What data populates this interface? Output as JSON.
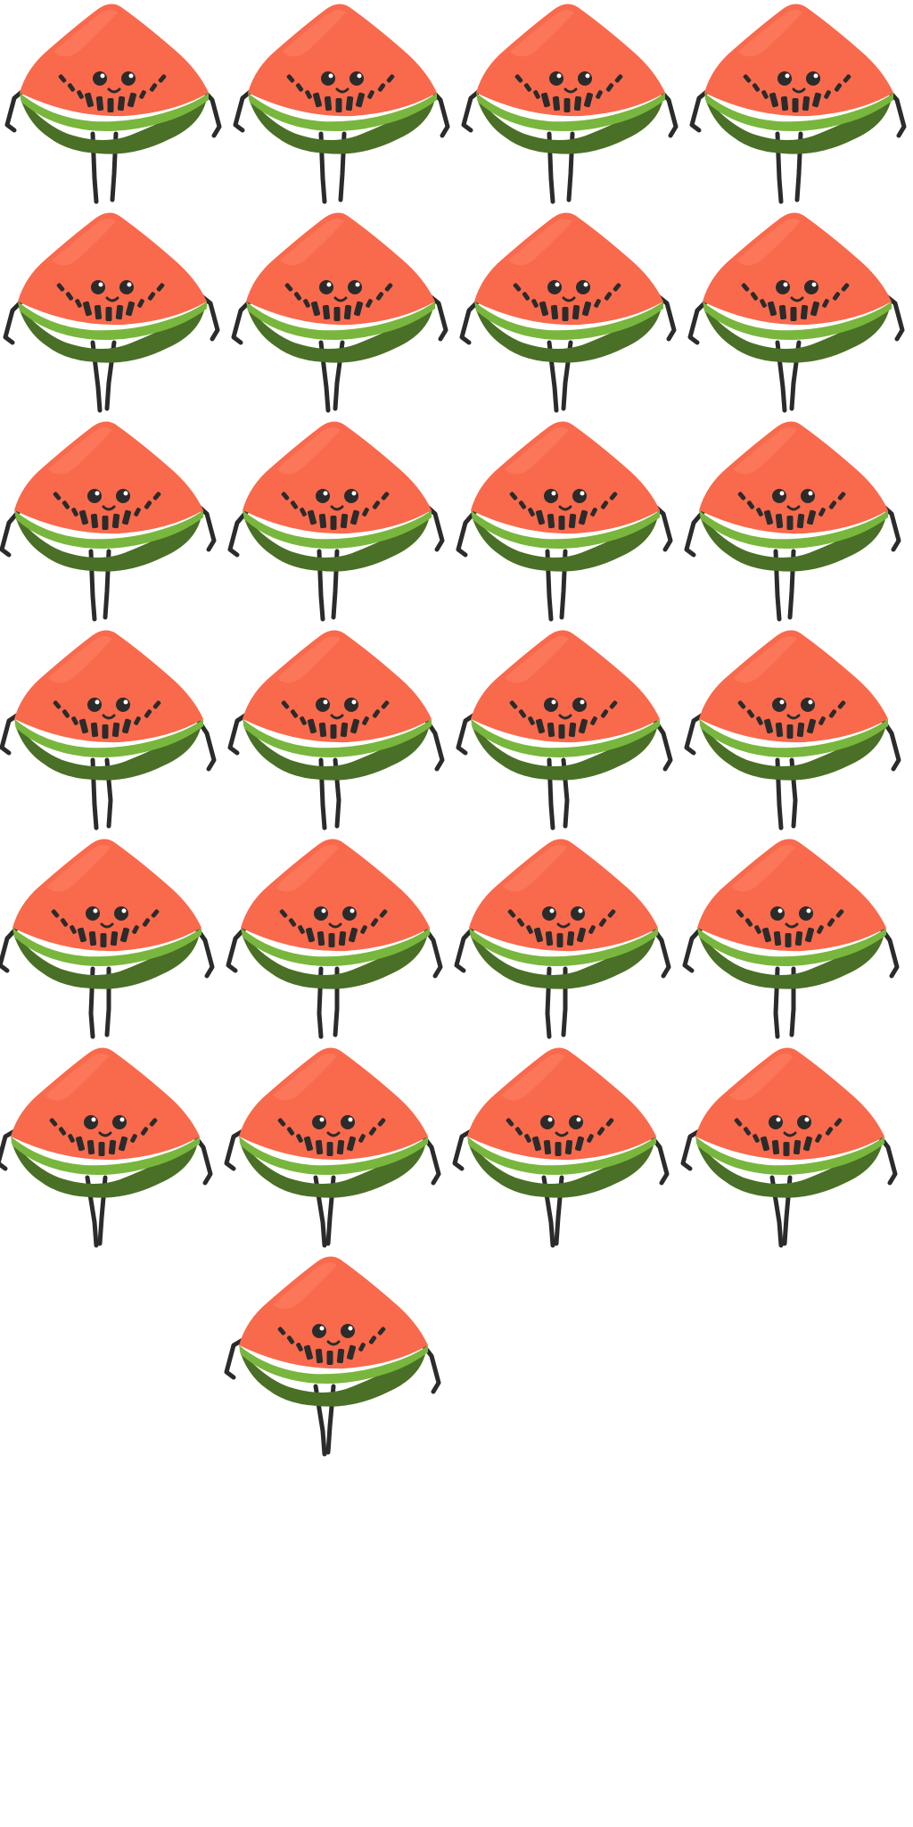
{
  "sprite_sheet": {
    "character": "watermelon-slice",
    "columns": 4,
    "frame_count": 25,
    "colors": {
      "background": "#ffffff",
      "flesh": "#f9694c",
      "flesh_highlight": "#ff8266",
      "rind_light": "#79b63d",
      "rind_dark": "#4a6f26",
      "seed": "#2b2b2b",
      "eye_shine": "#ffffff",
      "limb": "#2b2b2b"
    },
    "frames": [
      {
        "pose": "stand"
      },
      {
        "pose": "stand"
      },
      {
        "pose": "stand"
      },
      {
        "pose": "stand"
      },
      {
        "pose": "walk-a"
      },
      {
        "pose": "walk-a"
      },
      {
        "pose": "walk-a"
      },
      {
        "pose": "walk-a"
      },
      {
        "pose": "walk-b"
      },
      {
        "pose": "walk-b"
      },
      {
        "pose": "walk-b"
      },
      {
        "pose": "walk-b"
      },
      {
        "pose": "walk-c"
      },
      {
        "pose": "walk-c"
      },
      {
        "pose": "walk-c"
      },
      {
        "pose": "walk-c"
      },
      {
        "pose": "walk-d"
      },
      {
        "pose": "walk-d"
      },
      {
        "pose": "walk-d"
      },
      {
        "pose": "walk-d"
      },
      {
        "pose": "step"
      },
      {
        "pose": "step"
      },
      {
        "pose": "step"
      },
      {
        "pose": "step"
      },
      {
        "pose": "step"
      }
    ]
  }
}
